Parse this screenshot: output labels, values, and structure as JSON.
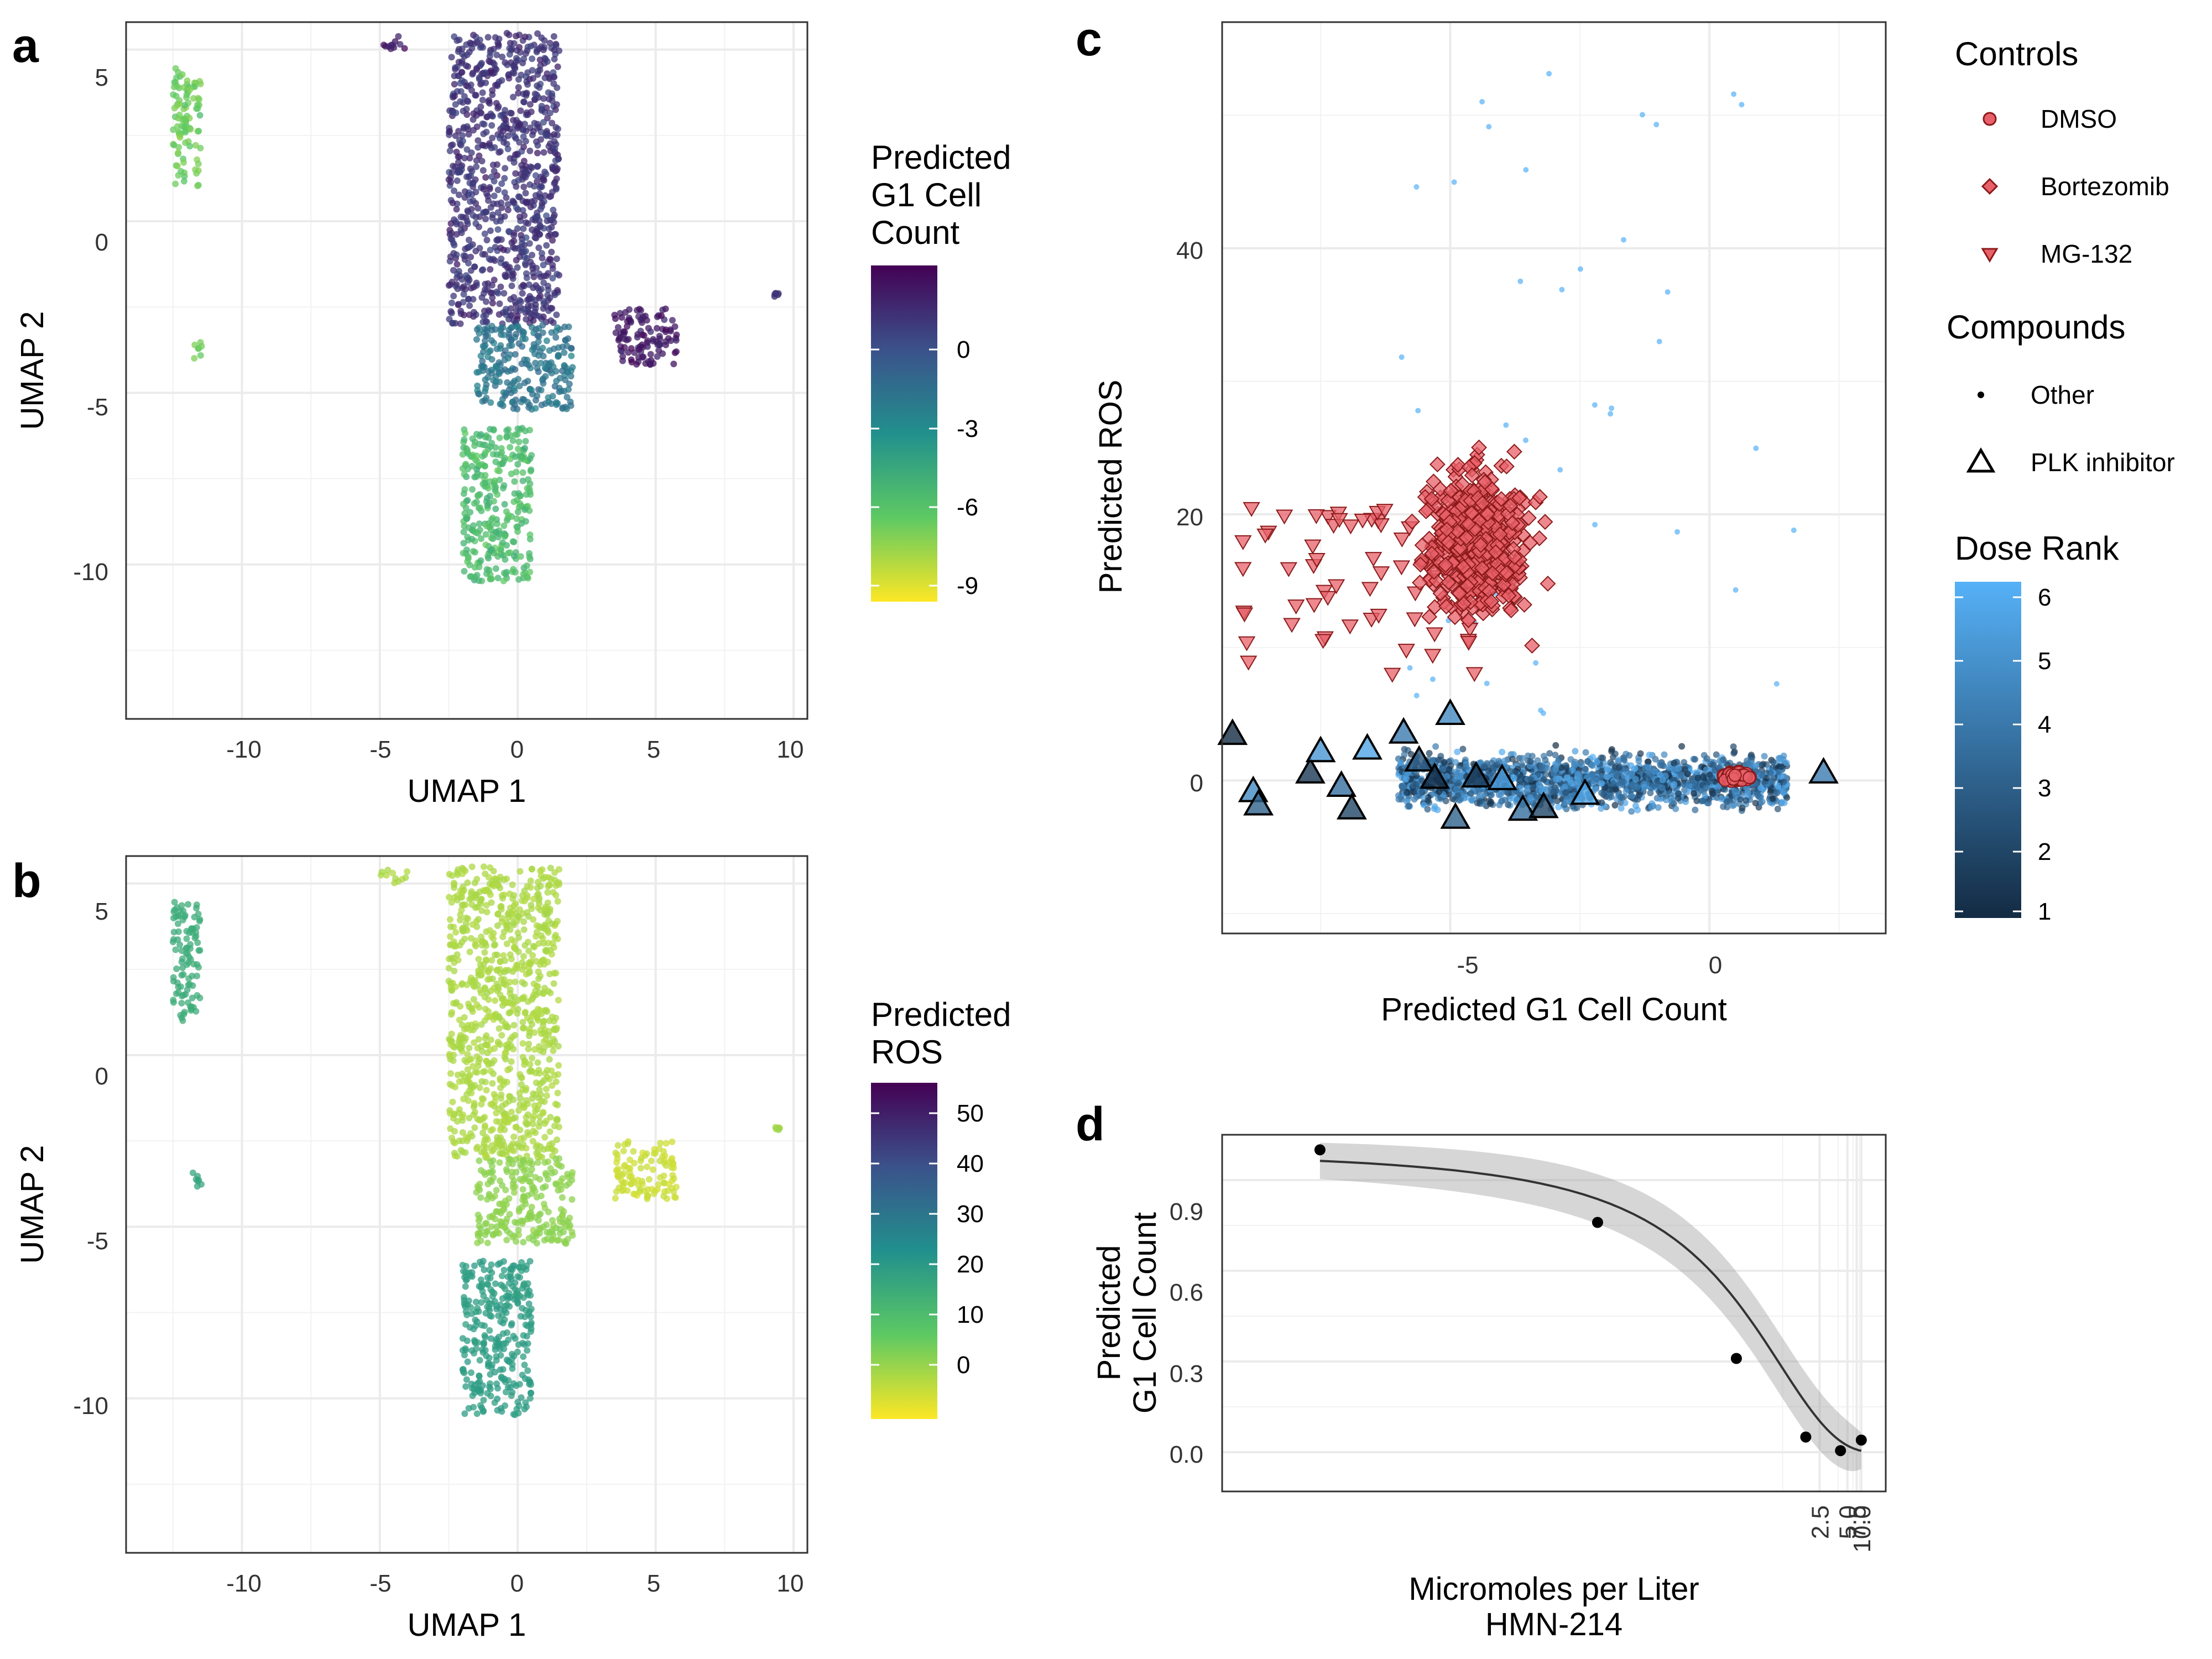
{
  "panels": {
    "a": {
      "letter": "a",
      "xlabel": "UMAP 1",
      "ylabel": "UMAP 2",
      "xticks": [
        "-10",
        "-5",
        "0",
        "5",
        "10"
      ],
      "yticks": [
        "5",
        "0",
        "-5",
        "-10"
      ],
      "legend": {
        "title_lines": [
          "Predicted",
          "G1 Cell",
          "Count"
        ],
        "ticks": [
          "0",
          "-3",
          "-6",
          "-9"
        ]
      }
    },
    "b": {
      "letter": "b",
      "xlabel": "UMAP 1",
      "ylabel": "UMAP 2",
      "xticks": [
        "-10",
        "-5",
        "0",
        "5",
        "10"
      ],
      "yticks": [
        "5",
        "0",
        "-5",
        "-10"
      ],
      "legend": {
        "title_lines": [
          "Predicted",
          "ROS"
        ],
        "ticks": [
          "50",
          "40",
          "30",
          "20",
          "10",
          "0"
        ]
      }
    },
    "c": {
      "letter": "c",
      "xlabel": "Predicted G1 Cell Count",
      "ylabel": "Predicted ROS",
      "xticks": [
        "-5",
        "0"
      ],
      "yticks": [
        "40",
        "20",
        "0"
      ],
      "legend": {
        "controls_title": "Controls",
        "controls": [
          "DMSO",
          "Bortezomib",
          "MG-132"
        ],
        "compounds_title": "Compounds",
        "compounds": [
          "Other",
          "PLK inhibitor"
        ],
        "dose_title": "Dose Rank",
        "dose_ticks": [
          "6",
          "5",
          "4",
          "3",
          "2",
          "1"
        ]
      }
    },
    "d": {
      "letter": "d",
      "xlabel_line1": "Micromoles per Liter",
      "xlabel_line2": "HMN-214",
      "ylabel_line1": "Predicted",
      "ylabel_line2": "G1 Cell Count",
      "xticks": [
        "2.5",
        "5.0",
        "7.5",
        "10.0"
      ],
      "yticks": [
        "0.9",
        "0.6",
        "0.3",
        "0.0"
      ]
    }
  },
  "colors": {
    "viridis": [
      "#440154",
      "#3b528b",
      "#21908d",
      "#5dc963",
      "#fde725"
    ],
    "control_fill": "#e8606a",
    "control_edge": "#8b1a1a",
    "dose_low": "#132b43",
    "dose_high": "#56b1f7",
    "grid": "#ebebeb"
  },
  "chart_data": [
    {
      "panel": "a",
      "type": "scatter",
      "xlabel": "UMAP 1",
      "ylabel": "UMAP 2",
      "xlim": [
        -14.2,
        10.5
      ],
      "ylim": [
        -14.5,
        5.8
      ],
      "color_by": "Predicted G1 Cell Count",
      "color_range": [
        -10,
        3
      ],
      "regions": [
        {
          "x": [
            -2.5,
            1.5
          ],
          "y": [
            -3,
            5.5
          ],
          "value": 1.0
        },
        {
          "x": [
            -1.5,
            2.0
          ],
          "y": [
            -5.5,
            -3
          ],
          "value": -2.0
        },
        {
          "x": [
            3.5,
            5.8
          ],
          "y": [
            -4.2,
            -2.5
          ],
          "value": 2.0
        },
        {
          "x": [
            -2.0,
            0.5
          ],
          "y": [
            -10.5,
            -6.0
          ],
          "value": -6.0
        },
        {
          "x": [
            -12.5,
            -11.5
          ],
          "y": [
            1.0,
            4.5
          ],
          "value": -7.0
        },
        {
          "x": [
            -11.8,
            -11.4
          ],
          "y": [
            -4.0,
            -3.4
          ],
          "value": -7.0
        },
        {
          "x": [
            -5.0,
            -4.0
          ],
          "y": [
            5.0,
            5.4
          ],
          "value": 2.0
        },
        {
          "x": [
            9.3,
            9.5
          ],
          "y": [
            -2.2,
            -2.1
          ],
          "value": 1.0
        }
      ]
    },
    {
      "panel": "b",
      "type": "scatter",
      "xlabel": "UMAP 1",
      "ylabel": "UMAP 2",
      "xlim": [
        -14.2,
        10.5
      ],
      "ylim": [
        -14.5,
        5.8
      ],
      "color_by": "Predicted ROS",
      "color_range": [
        -6,
        57
      ],
      "regions": [
        {
          "x": [
            -2.5,
            1.5
          ],
          "y": [
            -3,
            5.5
          ],
          "value": 2.0
        },
        {
          "x": [
            -1.5,
            2.0
          ],
          "y": [
            -5.5,
            -3
          ],
          "value": 5.0
        },
        {
          "x": [
            3.5,
            5.8
          ],
          "y": [
            -4.2,
            -2.5
          ],
          "value": -1.0
        },
        {
          "x": [
            -2.0,
            0.5
          ],
          "y": [
            -10.5,
            -6.0
          ],
          "value": 22.0
        },
        {
          "x": [
            -12.5,
            -11.5
          ],
          "y": [
            1.0,
            4.5
          ],
          "value": 18.0
        },
        {
          "x": [
            -11.8,
            -11.4
          ],
          "y": [
            -4.0,
            -3.4
          ],
          "value": 20.0
        },
        {
          "x": [
            -5.0,
            -4.0
          ],
          "y": [
            5.0,
            5.4
          ],
          "value": 2.0
        },
        {
          "x": [
            9.3,
            9.5
          ],
          "y": [
            -2.2,
            -2.1
          ],
          "value": 3.0
        }
      ]
    },
    {
      "panel": "c",
      "type": "scatter",
      "xlabel": "Predicted G1 Cell Count",
      "ylabel": "Predicted ROS",
      "xlim": [
        -9.4,
        3.4
      ],
      "ylim": [
        -11.5,
        57
      ],
      "series": [
        {
          "name": "DMSO",
          "x_range": [
            -0.5,
            1.5
          ],
          "y_range": [
            -1,
            2
          ]
        },
        {
          "name": "Bortezomib",
          "x_range": [
            -6.5,
            -2.5
          ],
          "y_range": [
            6,
            35
          ]
        },
        {
          "name": "MG-132",
          "x_range": [
            -9,
            -4.5
          ],
          "y_range": [
            8,
            21
          ]
        },
        {
          "name": "Other",
          "x_range": [
            -6,
            1.5
          ],
          "y_range": [
            -7,
            5
          ]
        },
        {
          "name": "PLK inhibitor",
          "points": [
            [
              -9.2,
              3.5
            ],
            [
              -8.8,
              -0.8
            ],
            [
              -8.7,
              -1.8
            ],
            [
              -7.7,
              0.6
            ],
            [
              -7.5,
              2.2
            ],
            [
              -7.1,
              -0.4
            ],
            [
              -6.9,
              -2.1
            ],
            [
              -6.6,
              2.4
            ],
            [
              -5.9,
              3.6
            ],
            [
              -5.6,
              1.5
            ],
            [
              -5.3,
              0.2
            ],
            [
              -5.0,
              5.0
            ],
            [
              -4.9,
              -2.8
            ],
            [
              -4.5,
              0.3
            ],
            [
              -4.0,
              0.1
            ],
            [
              -3.6,
              -2.2
            ],
            [
              -3.2,
              -2.0
            ],
            [
              -2.4,
              -1.0
            ],
            [
              2.2,
              0.6
            ]
          ]
        }
      ]
    },
    {
      "panel": "d",
      "type": "line",
      "xlabel": "Micromoles per Liter",
      "ylabel": "Predicted G1 Cell Count",
      "x_scale": "reciprocal",
      "x": [
        0.25,
        0.5,
        1.0,
        2.0,
        4.0,
        10.0
      ],
      "y": [
        1.0,
        0.76,
        0.31,
        0.05,
        0.005,
        0.04
      ],
      "ylim": [
        -0.13,
        1.05
      ]
    }
  ]
}
